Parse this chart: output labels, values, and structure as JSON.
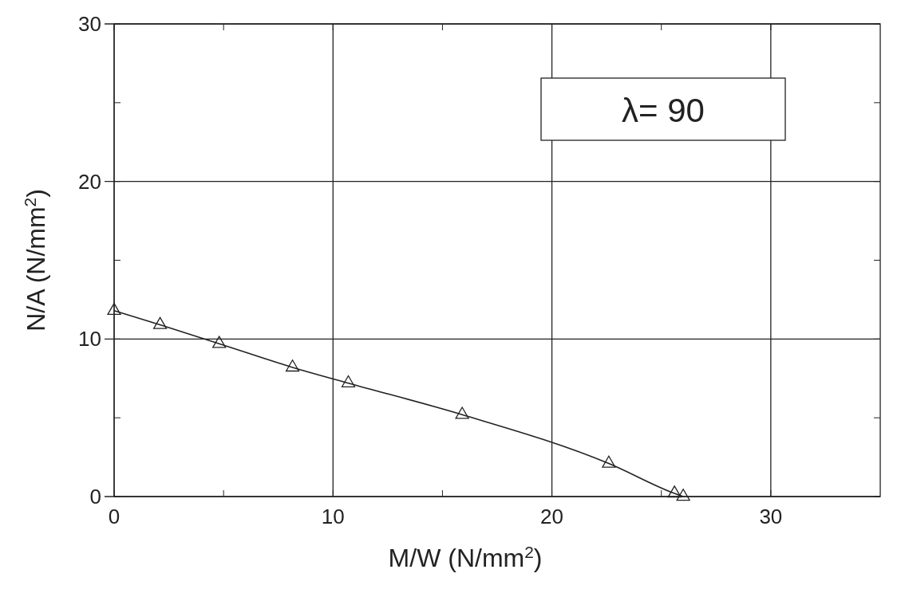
{
  "chart_data": {
    "type": "line",
    "xlabel": "M/W (N/mm$^{2}$)",
    "ylabel": "N/A (N/mm$^{2}$)",
    "annotations": [
      "λ=  90"
    ],
    "series": [
      {
        "color": "#222222",
        "x": [
          0,
          2.1,
          4.8,
          8.15,
          10.7,
          15.9,
          22.6,
          25.6,
          26.0
        ],
        "values": [
          11.8,
          10.9,
          9.7,
          8.2,
          7.2,
          5.2,
          2.1,
          0.2,
          0
        ]
      }
    ],
    "xlim": [
      0,
      35
    ],
    "xticks": [
      0,
      {
        "value": 5,
        "label": null
      },
      10,
      {
        "value": 15,
        "label": null
      },
      20,
      {
        "value": 25,
        "label": null
      },
      30
    ],
    "ylim": [
      0,
      30
    ],
    "yticks": [
      0,
      {
        "value": 5,
        "label": null
      },
      10,
      {
        "value": 15,
        "label": null
      },
      20,
      {
        "value": 25,
        "label": null
      },
      30
    ],
    "grid": true,
    "marker": "triangle",
    "line_style": "solid"
  }
}
